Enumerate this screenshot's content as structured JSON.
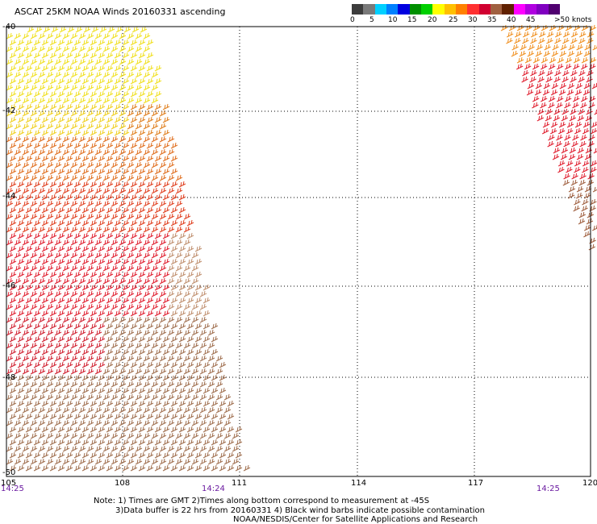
{
  "title": "ASCAT 25KM NOAA Winds 20160331 ascending",
  "colorbar": {
    "colors": [
      "#3c3c3c",
      "#7a7a7a",
      "#00d0ff",
      "#0080ff",
      "#0000e0",
      "#009000",
      "#00d000",
      "#ffff00",
      "#ffc000",
      "#ff8000",
      "#ff3030",
      "#d00030",
      "#a06040",
      "#602000",
      "#ff00ff",
      "#b000e0",
      "#8000c0",
      "#500070"
    ],
    "labels": [
      "0",
      "5",
      "10",
      "15",
      "20",
      "25",
      "30",
      "35",
      "40",
      "45",
      ">50 knots"
    ]
  },
  "map": {
    "lat_labels": [
      "-40",
      "-42",
      "-44",
      "-46",
      "-48",
      "-50"
    ],
    "lon_labels": [
      "105",
      "108",
      "111",
      "114",
      "117",
      "120"
    ],
    "time_labels": [
      "14:25",
      "14:24",
      "14:25"
    ]
  },
  "notes": {
    "line1": "Note: 1) Times are GMT 2)Times along bottom correspond to measurement at -45S",
    "line2": "3)Data buffer is 22 hrs from 20160331 4) Black wind barbs indicate possible contamination",
    "line3": "NOAA/NESDIS/Center for Satellite Applications and Research"
  }
}
